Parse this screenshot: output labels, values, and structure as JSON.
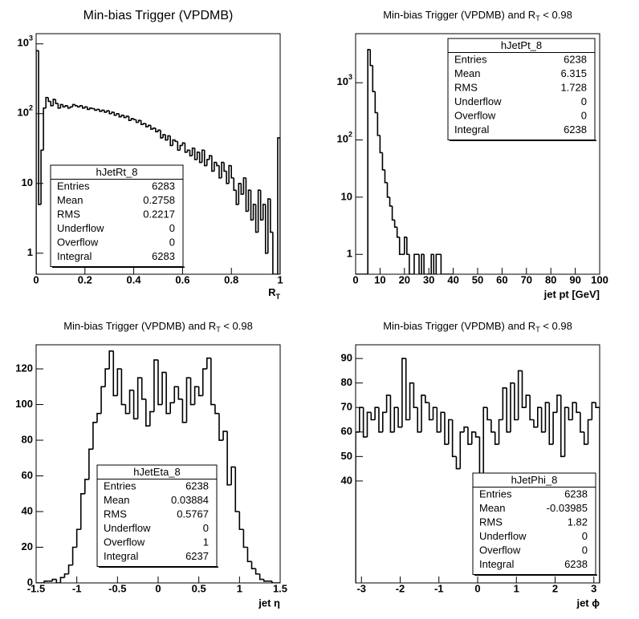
{
  "chart_data": [
    {
      "type": "histogram",
      "title": "Min-bias Trigger (VPDMB)",
      "x_label": {
        "text": "R",
        "sub": "T"
      },
      "log_y": true,
      "color": "#000000",
      "xlim": [
        0,
        1
      ],
      "xticks": [
        0,
        0.2,
        0.4,
        0.6,
        0.8,
        1
      ],
      "ylim": [
        0.5,
        1400
      ],
      "yticks": [
        1,
        10,
        {
          "value": 100,
          "label": "10",
          "exp": "2"
        },
        {
          "value": 1000,
          "label": "10",
          "exp": "3"
        }
      ],
      "bins": [
        0,
        0.01,
        0.02,
        0.03,
        0.04,
        0.05,
        0.06,
        0.07,
        0.08,
        0.09,
        0.1,
        0.11,
        0.12,
        0.13,
        0.14,
        0.15,
        0.16,
        0.17,
        0.18,
        0.19,
        0.2,
        0.21,
        0.22,
        0.23,
        0.24,
        0.25,
        0.26,
        0.27,
        0.28,
        0.29,
        0.3,
        0.31,
        0.32,
        0.33,
        0.34,
        0.35,
        0.36,
        0.37,
        0.38,
        0.39,
        0.4,
        0.41,
        0.42,
        0.43,
        0.44,
        0.45,
        0.46,
        0.47,
        0.48,
        0.49,
        0.5,
        0.51,
        0.52,
        0.53,
        0.54,
        0.55,
        0.56,
        0.57,
        0.58,
        0.59,
        0.6,
        0.61,
        0.62,
        0.63,
        0.64,
        0.65,
        0.66,
        0.67,
        0.68,
        0.69,
        0.7,
        0.71,
        0.72,
        0.73,
        0.74,
        0.75,
        0.76,
        0.77,
        0.78,
        0.79,
        0.8,
        0.81,
        0.82,
        0.83,
        0.84,
        0.85,
        0.86,
        0.87,
        0.88,
        0.89,
        0.9,
        0.91,
        0.92,
        0.93,
        0.94,
        0.95,
        0.96,
        0.97,
        0.98,
        0.99,
        1
      ],
      "values": [
        800,
        5,
        30,
        120,
        170,
        150,
        130,
        160,
        140,
        120,
        135,
        125,
        130,
        120,
        125,
        135,
        130,
        125,
        130,
        120,
        125,
        115,
        120,
        118,
        112,
        115,
        108,
        112,
        105,
        110,
        100,
        105,
        95,
        100,
        90,
        95,
        88,
        92,
        80,
        85,
        82,
        75,
        80,
        70,
        72,
        65,
        68,
        60,
        62,
        55,
        58,
        45,
        50,
        42,
        48,
        35,
        42,
        40,
        30,
        35,
        38,
        28,
        30,
        25,
        32,
        22,
        28,
        20,
        30,
        18,
        22,
        25,
        15,
        20,
        18,
        12,
        20,
        15,
        10,
        18,
        12,
        8,
        5,
        10,
        7,
        12,
        4,
        8,
        3,
        5,
        2,
        8,
        3,
        5,
        1,
        6,
        2,
        0,
        0,
        45
      ],
      "stats": {
        "name": "hJetRt_8",
        "rows": [
          [
            "Entries",
            6283
          ],
          [
            "Mean",
            0.2758
          ],
          [
            "RMS",
            0.2217
          ],
          [
            "Underflow",
            0
          ],
          [
            "Overflow",
            0
          ],
          [
            "Integral",
            6283
          ]
        ]
      }
    },
    {
      "type": "histogram",
      "title": {
        "text": "Min-bias Trigger (VPDMB) and R",
        "sub": "T",
        "after": " < 0.98"
      },
      "x_label": "jet pt [GeV]",
      "log_y": true,
      "color": "#000000",
      "xlim": [
        0,
        100
      ],
      "xticks": [
        0,
        10,
        20,
        30,
        40,
        50,
        60,
        70,
        80,
        90,
        100
      ],
      "ylim": [
        0.45,
        7200
      ],
      "yticks": [
        1,
        10,
        {
          "value": 100,
          "label": "10",
          "exp": "2"
        },
        {
          "value": 1000,
          "label": "10",
          "exp": "3"
        }
      ],
      "bins": [
        0,
        1,
        2,
        3,
        4,
        5,
        6,
        7,
        8,
        9,
        10,
        11,
        12,
        13,
        14,
        15,
        16,
        17,
        18,
        19,
        20,
        21,
        22,
        23,
        24,
        25,
        26,
        27,
        28,
        29,
        30,
        31,
        32,
        33,
        34,
        35,
        36,
        37,
        38,
        39,
        40
      ],
      "values": [
        0,
        0,
        0,
        0,
        0,
        3800,
        2000,
        700,
        300,
        120,
        60,
        30,
        18,
        10,
        7,
        4,
        3,
        2,
        1,
        1,
        2,
        1,
        0,
        0,
        1,
        1,
        0,
        1,
        0,
        0,
        0,
        1,
        0,
        1,
        1,
        0,
        0,
        0,
        0,
        0
      ],
      "stats": {
        "name": "hJetPt_8",
        "rows": [
          [
            "Entries",
            6238
          ],
          [
            "Mean",
            6.315
          ],
          [
            "RMS",
            1.728
          ],
          [
            "Underflow",
            0
          ],
          [
            "Overflow",
            0
          ],
          [
            "Integral",
            6238
          ]
        ]
      }
    },
    {
      "type": "histogram",
      "title": {
        "text": "Min-bias Trigger (VPDMB) and R",
        "sub": "T",
        "after": " < 0.98"
      },
      "x_label": "jet η",
      "log_y": false,
      "color": "#000000",
      "xlim": [
        -1.5,
        1.5
      ],
      "xticks": [
        -1.5,
        -1,
        -0.5,
        0,
        0.5,
        1,
        1.5
      ],
      "ylim": [
        0,
        133.5
      ],
      "yticks": [
        0,
        20,
        40,
        60,
        80,
        100,
        120
      ],
      "bins": [
        -1.5,
        -1.45,
        -1.4,
        -1.35,
        -1.3,
        -1.25,
        -1.2,
        -1.15,
        -1.1,
        -1.05,
        -1,
        -0.95,
        -0.9,
        -0.85,
        -0.8,
        -0.75,
        -0.7,
        -0.65,
        -0.6,
        -0.55,
        -0.5,
        -0.45,
        -0.4,
        -0.35,
        -0.3,
        -0.25,
        -0.2,
        -0.15,
        -0.1,
        -0.05,
        0,
        0.05,
        0.1,
        0.15,
        0.2,
        0.25,
        0.3,
        0.35,
        0.4,
        0.45,
        0.5,
        0.55,
        0.6,
        0.65,
        0.7,
        0.75,
        0.8,
        0.85,
        0.9,
        0.95,
        1,
        1.05,
        1.1,
        1.15,
        1.2,
        1.25,
        1.3,
        1.35,
        1.4,
        1.45,
        1.5
      ],
      "values": [
        0,
        0,
        1,
        1,
        2,
        0,
        3,
        5,
        10,
        20,
        30,
        50,
        58,
        75,
        90,
        95,
        110,
        120,
        130,
        105,
        120,
        100,
        95,
        108,
        92,
        115,
        103,
        88,
        96,
        125,
        100,
        118,
        95,
        101,
        110,
        103,
        90,
        115,
        100,
        110,
        105,
        120,
        126,
        100,
        95,
        80,
        85,
        55,
        65,
        40,
        30,
        20,
        12,
        8,
        5,
        2,
        1,
        1,
        0,
        0
      ],
      "stats": {
        "name": "hJetEta_8",
        "rows": [
          [
            "Entries",
            6238
          ],
          [
            "Mean",
            0.03884
          ],
          [
            "RMS",
            0.5767
          ],
          [
            "Underflow",
            0
          ],
          [
            "Overflow",
            1
          ],
          [
            "Integral",
            6237
          ]
        ]
      }
    },
    {
      "type": "histogram",
      "title": {
        "text": "Min-bias Trigger (VPDMB) and R",
        "sub": "T",
        "after": " < 0.98"
      },
      "x_label": "jet ϕ",
      "log_y": false,
      "color": "#000000",
      "xlim": [
        -3.15,
        3.15
      ],
      "xticks": [
        -3,
        -2,
        -1,
        0,
        1,
        2,
        3
      ],
      "ylim": [
        -1.6,
        95.6
      ],
      "yticks": [
        40,
        50,
        60,
        70,
        80,
        90
      ],
      "bins": [
        -3.15,
        -3.05,
        -2.95,
        -2.85,
        -2.75,
        -2.65,
        -2.55,
        -2.45,
        -2.35,
        -2.25,
        -2.15,
        -2.05,
        -1.95,
        -1.85,
        -1.75,
        -1.65,
        -1.55,
        -1.45,
        -1.35,
        -1.25,
        -1.15,
        -1.05,
        -0.95,
        -0.85,
        -0.75,
        -0.65,
        -0.55,
        -0.45,
        -0.35,
        -0.25,
        -0.15,
        -0.05,
        0.05,
        0.15,
        0.25,
        0.35,
        0.45,
        0.55,
        0.65,
        0.75,
        0.85,
        0.95,
        1.05,
        1.15,
        1.25,
        1.35,
        1.45,
        1.55,
        1.65,
        1.75,
        1.85,
        1.95,
        2.05,
        2.15,
        2.25,
        2.35,
        2.45,
        2.55,
        2.65,
        2.75,
        2.85,
        2.95,
        3.05,
        3.15
      ],
      "values": [
        60,
        70,
        58,
        68,
        65,
        70,
        60,
        68,
        75,
        60,
        70,
        62,
        90,
        65,
        80,
        70,
        60,
        75,
        72,
        65,
        70,
        60,
        68,
        55,
        65,
        50,
        45,
        60,
        62,
        55,
        60,
        58,
        40,
        70,
        65,
        60,
        55,
        65,
        78,
        60,
        80,
        65,
        85,
        70,
        75,
        65,
        62,
        70,
        60,
        72,
        55,
        68,
        75,
        50,
        70,
        65,
        72,
        68,
        60,
        55,
        65,
        72,
        70
      ],
      "stats": {
        "name": "hJetPhi_8",
        "rows": [
          [
            "Entries",
            6238
          ],
          [
            "Mean",
            -0.03985
          ],
          [
            "RMS",
            1.82
          ],
          [
            "Underflow",
            0
          ],
          [
            "Overflow",
            0
          ],
          [
            "Integral",
            6238
          ]
        ]
      }
    }
  ]
}
